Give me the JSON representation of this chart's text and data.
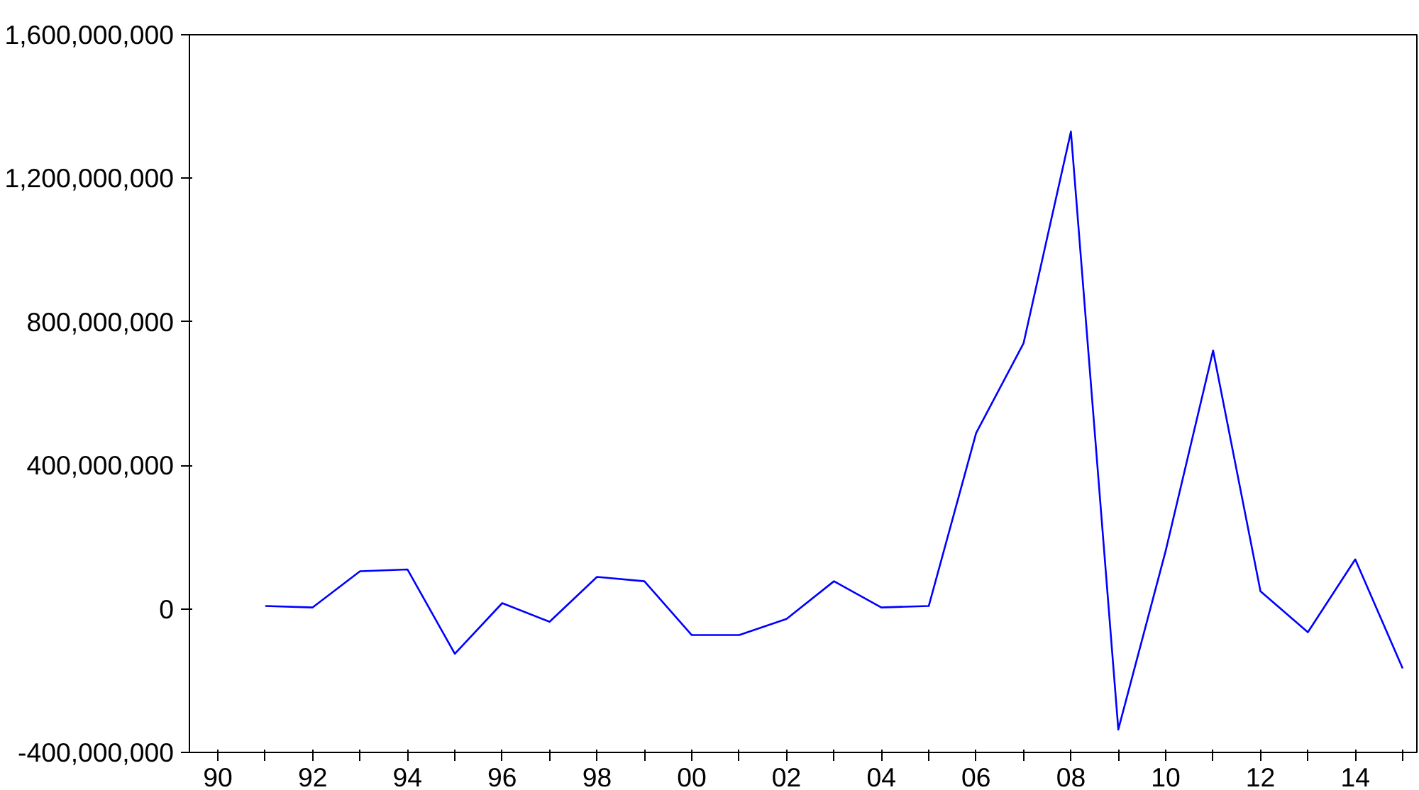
{
  "chart_data": {
    "type": "line",
    "x": [
      1991,
      1992,
      1993,
      1994,
      1995,
      1996,
      1997,
      1998,
      1999,
      2000,
      2001,
      2002,
      2003,
      2004,
      2005,
      2006,
      2007,
      2008,
      2009,
      2010,
      2011,
      2012,
      2013,
      2014,
      2015
    ],
    "series": [
      {
        "color": "#0000ff",
        "values": [
          8000000,
          4000000,
          105000000,
          110000000,
          -125000000,
          16000000,
          -36000000,
          89000000,
          77000000,
          -73000000,
          -73000000,
          -28000000,
          77000000,
          4000000,
          8000000,
          490000000,
          740000000,
          1330000000,
          -336000000,
          162000000,
          720000000,
          49000000,
          -65000000,
          138000000,
          -166000000
        ]
      }
    ],
    "xlim": [
      1989.4,
      2015.3
    ],
    "xticks": [
      {
        "value": 1990,
        "label": "90"
      },
      {
        "value": 1991,
        "label": null
      },
      {
        "value": 1992,
        "label": "92"
      },
      {
        "value": 1993,
        "label": null
      },
      {
        "value": 1994,
        "label": "94"
      },
      {
        "value": 1995,
        "label": null
      },
      {
        "value": 1996,
        "label": "96"
      },
      {
        "value": 1997,
        "label": null
      },
      {
        "value": 1998,
        "label": "98"
      },
      {
        "value": 1999,
        "label": null
      },
      {
        "value": 2000,
        "label": "00"
      },
      {
        "value": 2001,
        "label": null
      },
      {
        "value": 2002,
        "label": "02"
      },
      {
        "value": 2003,
        "label": null
      },
      {
        "value": 2004,
        "label": "04"
      },
      {
        "value": 2005,
        "label": null
      },
      {
        "value": 2006,
        "label": "06"
      },
      {
        "value": 2007,
        "label": null
      },
      {
        "value": 2008,
        "label": "08"
      },
      {
        "value": 2009,
        "label": null
      },
      {
        "value": 2010,
        "label": "10"
      },
      {
        "value": 2011,
        "label": null
      },
      {
        "value": 2012,
        "label": "12"
      },
      {
        "value": 2013,
        "label": null
      },
      {
        "value": 2014,
        "label": "14"
      },
      {
        "value": 2015,
        "label": null
      }
    ],
    "ylim": [
      -400000000,
      1600000000
    ],
    "yticks": [
      {
        "value": -400000000,
        "label": "-400,000,000"
      },
      {
        "value": 0,
        "label": "0"
      },
      {
        "value": 400000000,
        "label": "400,000,000"
      },
      {
        "value": 800000000,
        "label": "800,000,000"
      },
      {
        "value": 1200000000,
        "label": "1,200,000,000"
      },
      {
        "value": 1600000000,
        "label": "1,600,000,000"
      }
    ],
    "grid": false,
    "marker": "none",
    "line_style": "solid"
  }
}
